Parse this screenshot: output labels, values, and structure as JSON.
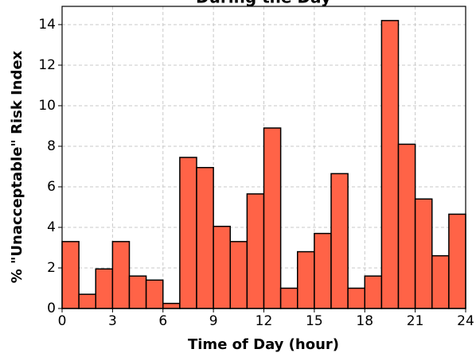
{
  "chart_data": {
    "type": "histogram",
    "title": "During the Day",
    "xlabel": "Time of Day (hour)",
    "ylabel": "% \"Unacceptable\" Risk Index",
    "bins": [
      0,
      1,
      2,
      3,
      4,
      5,
      6,
      7,
      8,
      9,
      10,
      11,
      12,
      13,
      14,
      15,
      16,
      17,
      18,
      19,
      20,
      21,
      22,
      23,
      24
    ],
    "values": [
      3.3,
      0.7,
      1.95,
      3.3,
      1.6,
      1.4,
      0.25,
      7.45,
      6.95,
      4.05,
      3.3,
      5.65,
      8.9,
      1.0,
      2.8,
      3.7,
      6.65,
      1.0,
      1.6,
      14.2,
      8.1,
      5.4,
      2.6,
      4.65
    ],
    "color": "#ff6347",
    "edgecolor": "#000000",
    "xlim": [
      0,
      24
    ],
    "xticks": [
      0,
      3,
      6,
      9,
      12,
      15,
      18,
      21,
      24
    ],
    "ylim": [
      0,
      14.9
    ],
    "yticks": [
      0,
      2,
      4,
      6,
      8,
      10,
      12,
      14
    ],
    "grid": true
  }
}
